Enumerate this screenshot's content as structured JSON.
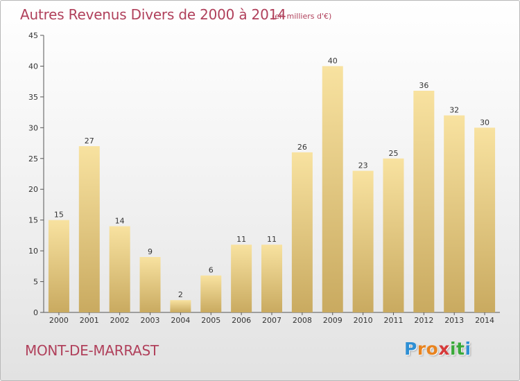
{
  "chart_data": {
    "type": "bar",
    "title": "Autres Revenus Divers de 2000 à 2014",
    "subtitle": "(en milliers d'€)",
    "categories": [
      "2000",
      "2001",
      "2002",
      "2003",
      "2004",
      "2005",
      "2006",
      "2007",
      "2008",
      "2009",
      "2010",
      "2011",
      "2012",
      "2013",
      "2014"
    ],
    "values": [
      15,
      27,
      14,
      9,
      2,
      6,
      11,
      11,
      26,
      40,
      23,
      25,
      36,
      32,
      30
    ],
    "ylim": [
      0,
      45
    ],
    "yticks": [
      0,
      5,
      10,
      15,
      20,
      25,
      30,
      35,
      40,
      45
    ],
    "grid": false,
    "data_labels": true,
    "bar_color": "#e8c978"
  },
  "commune": "MONT-DE-MARRAST",
  "logo": {
    "letters": [
      "P",
      "r",
      "o",
      "x",
      "i",
      "t",
      "i"
    ],
    "colors": [
      "#2e8fd4",
      "#e8831f",
      "#e8831f",
      "#d63a3a",
      "#3aa93a",
      "#3aa93a",
      "#2e8fd4"
    ]
  },
  "colors": {
    "title": "#b0405b",
    "axis": "#555555",
    "bar_light": "#f8e2a0",
    "bar_dark": "#c9aa60"
  }
}
